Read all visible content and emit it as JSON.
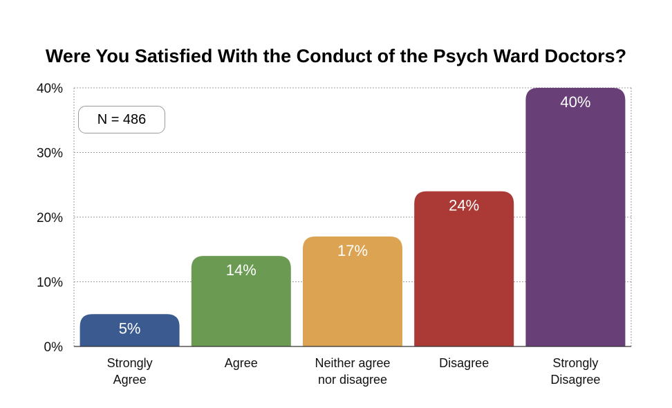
{
  "chart_data": {
    "type": "bar",
    "title": "Were You Satisfied With the Conduct of the Psych Ward Doctors?",
    "annotation": "N = 486",
    "categories": [
      [
        "Strongly",
        "Agree"
      ],
      [
        "Agree"
      ],
      [
        "Neither agree",
        "nor disagree"
      ],
      [
        "Disagree"
      ],
      [
        "Strongly",
        "Disagree"
      ]
    ],
    "values": [
      5,
      14,
      17,
      24,
      40
    ],
    "data_labels": [
      "5%",
      "14%",
      "17%",
      "24%",
      "40%"
    ],
    "colors": [
      "#3b5a8f",
      "#6b9a52",
      "#dca452",
      "#ab3a36",
      "#683f77"
    ],
    "ylim": [
      0,
      40
    ],
    "yticks": [
      0,
      10,
      20,
      30,
      40
    ],
    "ytick_labels": [
      "0%",
      "10%",
      "20%",
      "30%",
      "40%"
    ],
    "xlabel": "",
    "ylabel": "",
    "grid": true,
    "grid_style": "dotted"
  }
}
